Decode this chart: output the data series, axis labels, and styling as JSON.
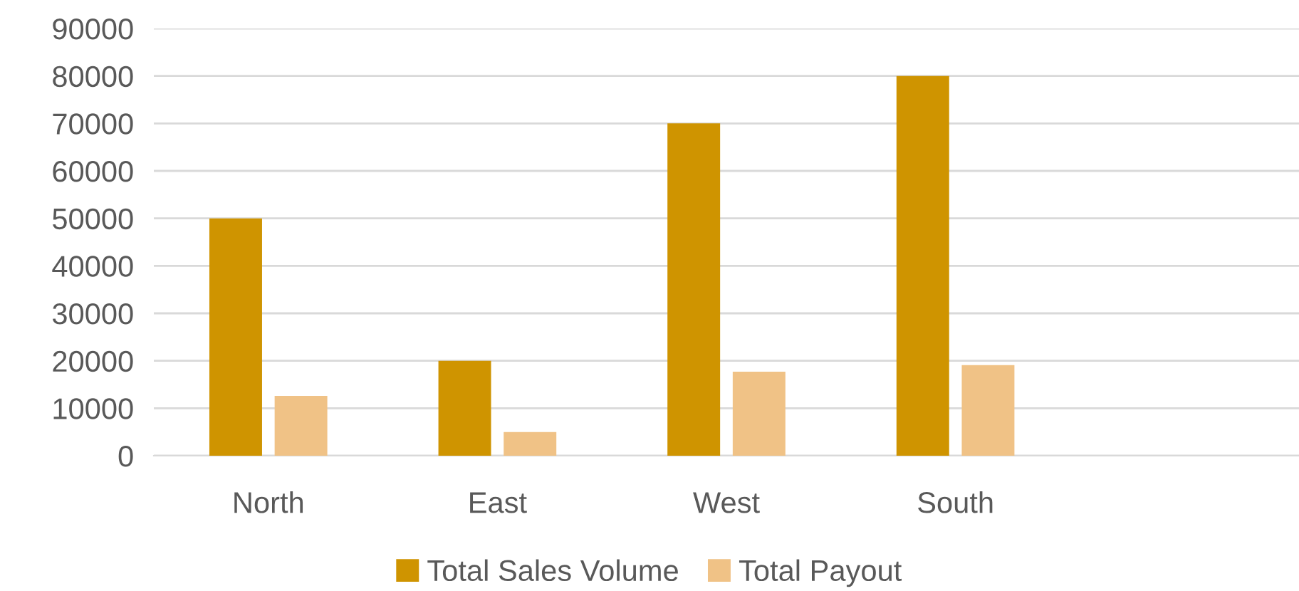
{
  "chart_data": {
    "type": "bar",
    "categories": [
      "North",
      "East",
      "West",
      "South",
      null
    ],
    "series": [
      {
        "name": "Total Sales Volume",
        "color": "#cf9400",
        "values": [
          50000,
          20000,
          70000,
          80000,
          null
        ]
      },
      {
        "name": "Total Payout",
        "color": "#f0c286",
        "values": [
          12600,
          5000,
          17700,
          19100,
          null
        ]
      }
    ],
    "ylim": [
      0,
      90000
    ],
    "yticks": [
      0,
      10000,
      20000,
      30000,
      40000,
      50000,
      60000,
      70000,
      80000,
      90000
    ],
    "grid": "y",
    "legend": "bottom"
  }
}
